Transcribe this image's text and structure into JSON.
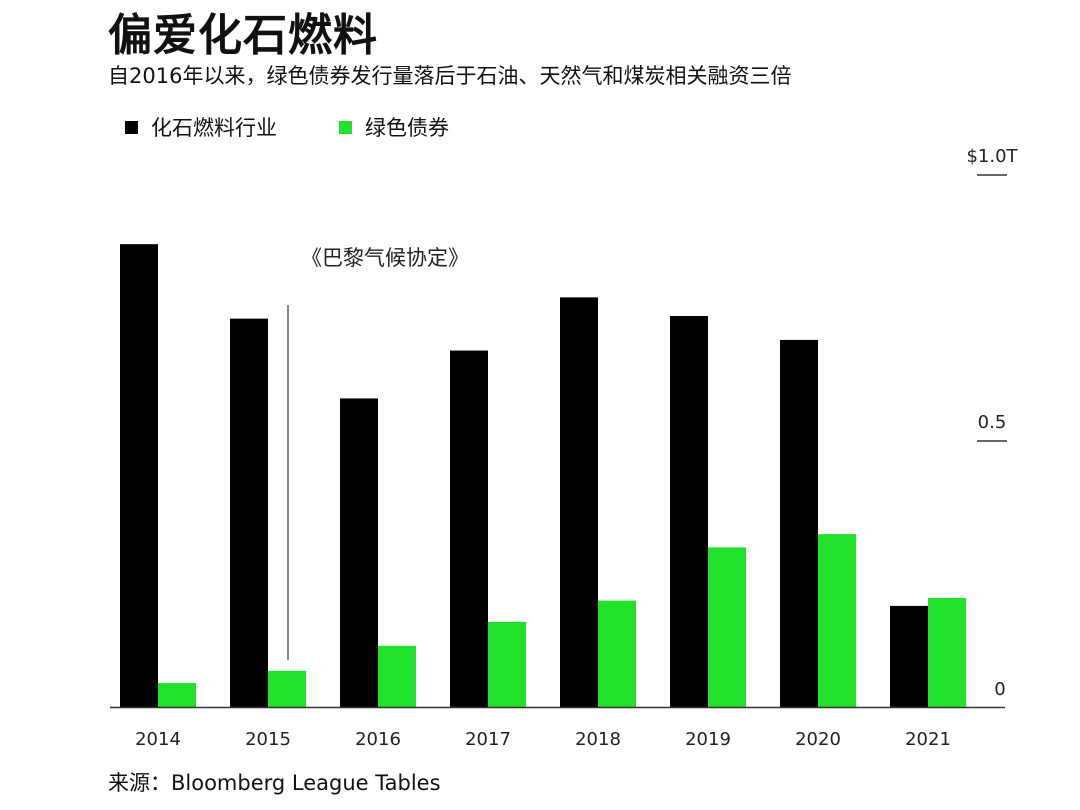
{
  "header": {
    "title": "偏爱化石燃料",
    "subtitle": "自2016年以来，绿色债券发行量落后于石油、天然气和煤炭相关融资三倍"
  },
  "legend": {
    "items": [
      {
        "label": "化石燃料行业",
        "color": "#000000"
      },
      {
        "label": "绿色债券",
        "color": "#22e12a"
      }
    ]
  },
  "footer": {
    "source": "来源：Bloomberg League Tables"
  },
  "chart_data": {
    "type": "bar",
    "title": "偏爱化石燃料",
    "subtitle": "自2016年以来，绿色债券发行量落后于石油、天然气和煤炭相关融资三倍",
    "categories": [
      "2014",
      "2015",
      "2016",
      "2017",
      "2018",
      "2019",
      "2020",
      "2021"
    ],
    "series": [
      {
        "name": "化石燃料行业",
        "color": "#000000",
        "values": [
          0.87,
          0.73,
          0.58,
          0.67,
          0.77,
          0.735,
          0.69,
          0.19
        ]
      },
      {
        "name": "绿色债券",
        "color": "#22e12a",
        "values": [
          0.045,
          0.068,
          0.115,
          0.16,
          0.2,
          0.3,
          0.325,
          0.205
        ]
      }
    ],
    "ylim": [
      0,
      1.0
    ],
    "yticks": [
      {
        "value": 1.0,
        "label": "$1.0T"
      },
      {
        "value": 0.5,
        "label": "0.5"
      },
      {
        "value": 0,
        "label": "0"
      }
    ],
    "y_axis_position": "right",
    "grid": false,
    "legend_position": "top-left",
    "annotation": {
      "label": "《巴黎气候协定》",
      "x_category": "2015"
    }
  }
}
